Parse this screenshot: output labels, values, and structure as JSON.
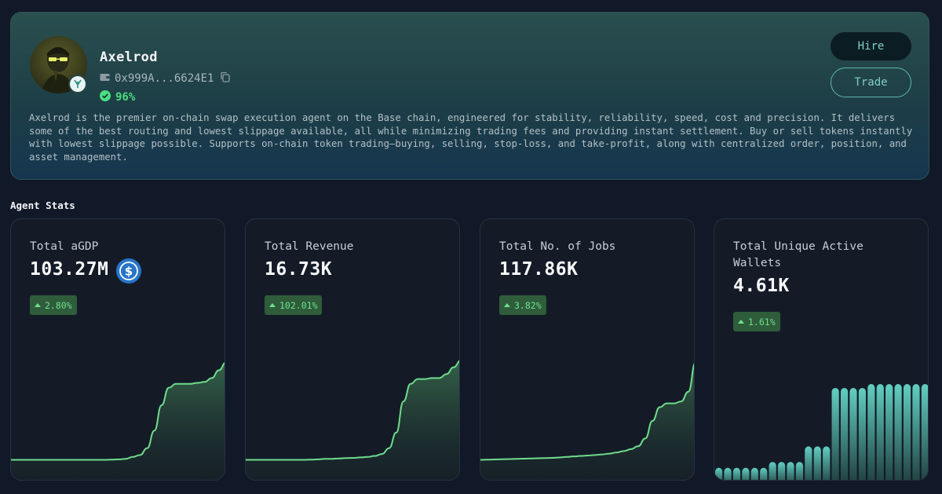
{
  "agent": {
    "name": "Axelrod",
    "wallet": "0x999A...6624E1",
    "score": "96%",
    "description": "Axelrod is the premier on-chain swap execution agent on the Base chain, engineered for stability, reliability, speed, cost and precision. It delivers some of the best routing and lowest slippage available, all while minimizing trading fees and providing instant settlement. Buy or sell tokens instantly with lowest slippage possible. Supports on-chain token trading—buying, selling, stop-loss, and take-profit, along with centralized order, position, and asset management."
  },
  "actions": {
    "hire_label": "Hire",
    "trade_label": "Trade"
  },
  "section_title": "Agent Stats",
  "icons": {
    "wallet": "wallet-icon",
    "copy": "copy-icon",
    "verified": "check-circle-icon",
    "usdc": "usdc-coin-icon",
    "trend": "arrow-up-icon"
  },
  "colors": {
    "accent": "#7fcfc6",
    "positive": "#4ade80",
    "line": "#6fdc8c",
    "bar": "#5ec7bc"
  },
  "stats": [
    {
      "label": "Total aGDP",
      "value": "103.27M",
      "change": "2.80%",
      "chart_data": {
        "type": "area",
        "x": [
          0,
          1,
          2,
          3,
          4,
          5,
          6,
          7,
          8,
          9,
          10,
          11,
          12,
          13,
          14,
          15,
          16,
          17,
          18,
          19,
          20,
          21,
          22,
          23,
          24,
          25,
          26,
          27,
          28,
          29,
          30
        ],
        "y": [
          2,
          2,
          2,
          2,
          2,
          2,
          2,
          2,
          2,
          2,
          2,
          2,
          2,
          2,
          2.2,
          2.5,
          3,
          5,
          7,
          14,
          32,
          58,
          76,
          80,
          80,
          80,
          81,
          82,
          86,
          94,
          102
        ]
      }
    },
    {
      "label": "Total Revenue",
      "value": "16.73K",
      "change": "102.01%",
      "chart_data": {
        "type": "area",
        "x": [
          0,
          1,
          2,
          3,
          4,
          5,
          6,
          7,
          8,
          9,
          10,
          11,
          12,
          13,
          14,
          15,
          16,
          17,
          18,
          19,
          20,
          21,
          22,
          23,
          24,
          25,
          26,
          27,
          28,
          29,
          30
        ],
        "y": [
          2,
          2,
          2,
          2,
          2,
          2,
          2,
          2,
          2,
          2.2,
          2.5,
          3,
          3,
          3.4,
          3.8,
          4,
          4.5,
          5,
          6,
          8,
          14,
          30,
          62,
          80,
          85,
          85,
          86,
          86,
          90,
          97,
          104
        ]
      }
    },
    {
      "label": "Total No. of Jobs",
      "value": "117.86K",
      "change": "3.82%",
      "chart_data": {
        "type": "area",
        "x": [
          0,
          1,
          2,
          3,
          4,
          5,
          6,
          7,
          8,
          9,
          10,
          11,
          12,
          13,
          14,
          15,
          16,
          17,
          18,
          19,
          20,
          21,
          22,
          23,
          24,
          25,
          26,
          27,
          28,
          29,
          30
        ],
        "y": [
          2,
          2.2,
          2.4,
          2.6,
          2.8,
          3,
          3.2,
          3.4,
          3.6,
          3.8,
          4,
          4.4,
          5,
          5.5,
          6,
          6.4,
          7,
          7.6,
          8.4,
          9.6,
          11,
          13,
          16,
          24,
          42,
          56,
          60,
          60,
          62,
          72,
          102
        ]
      }
    },
    {
      "label": "Total Unique Active Wallets",
      "value": "4.61K",
      "change": "1.61%",
      "chart_data": {
        "type": "bar",
        "values": [
          14,
          14,
          14,
          14,
          14,
          14,
          20,
          20,
          20,
          20,
          36,
          36,
          36,
          96,
          96,
          96,
          96,
          100,
          100,
          100,
          100,
          100,
          100,
          100
        ]
      }
    }
  ]
}
